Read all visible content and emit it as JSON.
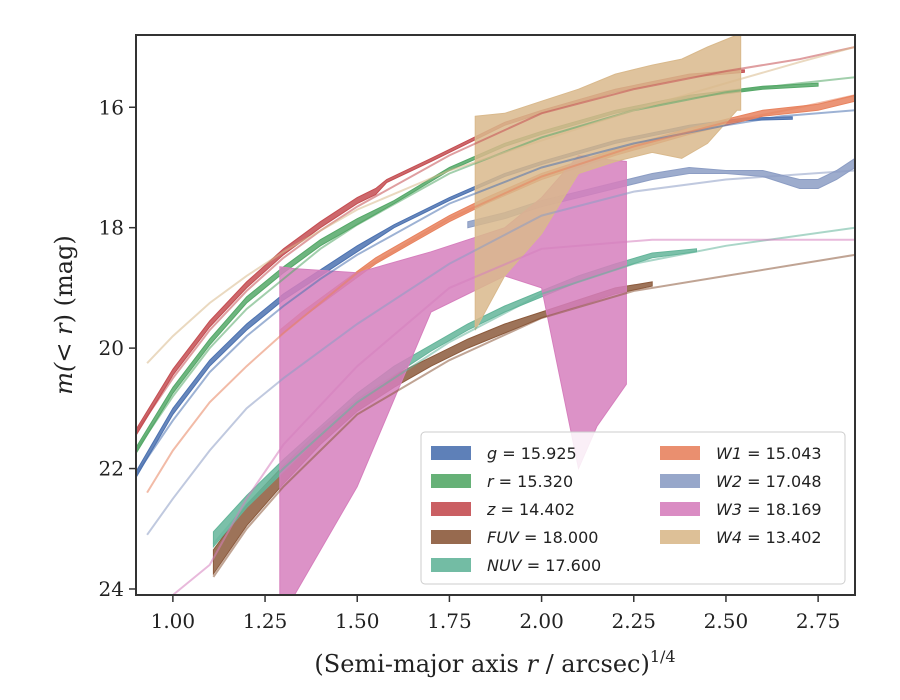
{
  "chart_data": {
    "type": "line",
    "xlabel_main": "(Semi-major axis ",
    "xlabel_var": "r",
    "xlabel_unit": " / arcsec)",
    "xlabel_exp": "1/4",
    "ylabel_pre": "m(",
    "ylabel_var": "< r",
    "ylabel_post": ") (mag)",
    "xlim": [
      0.9,
      2.85
    ],
    "ylim": [
      24.1,
      14.8
    ],
    "y_inverted": true,
    "xticks": [
      1.0,
      1.25,
      1.5,
      1.75,
      2.0,
      2.25,
      2.5,
      2.75
    ],
    "xtick_labels": [
      "1.00",
      "1.25",
      "1.50",
      "1.75",
      "2.00",
      "2.25",
      "2.50",
      "2.75"
    ],
    "yticks": [
      16,
      18,
      20,
      22,
      24
    ],
    "ytick_labels": [
      "16",
      "18",
      "20",
      "22",
      "24"
    ],
    "legend_position": "lower-right",
    "legend_columns": 2,
    "series": [
      {
        "name": "g = 15.925",
        "label_var": "g",
        "label_val": "= 15.925",
        "color": "#4c72b0",
        "band": [
          [
            0.9,
            22.15,
            22.05
          ],
          [
            1.0,
            21.1,
            21.0
          ],
          [
            1.1,
            20.3,
            20.2
          ],
          [
            1.2,
            19.7,
            19.6
          ],
          [
            1.3,
            19.2,
            19.1
          ],
          [
            1.4,
            18.8,
            18.7
          ],
          [
            1.5,
            18.4,
            18.3
          ],
          [
            1.6,
            18.0,
            17.95
          ],
          [
            1.75,
            17.55,
            17.5
          ],
          [
            1.9,
            17.15,
            17.1
          ],
          [
            2.0,
            16.95,
            16.9
          ],
          [
            2.2,
            16.6,
            16.55
          ],
          [
            2.4,
            16.35,
            16.3
          ],
          [
            2.55,
            16.22,
            16.18
          ],
          [
            2.68,
            16.2,
            16.16
          ]
        ],
        "model": [
          [
            0.9,
            22.1
          ],
          [
            1.0,
            21.2
          ],
          [
            1.1,
            20.4
          ],
          [
            1.2,
            19.8
          ],
          [
            1.3,
            19.3
          ],
          [
            1.4,
            18.85
          ],
          [
            1.5,
            18.45
          ],
          [
            1.75,
            17.6
          ],
          [
            2.0,
            17.0
          ],
          [
            2.25,
            16.6
          ],
          [
            2.5,
            16.3
          ],
          [
            2.65,
            16.15
          ],
          [
            2.85,
            16.05
          ]
        ]
      },
      {
        "name": "r = 15.320",
        "label_var": "r",
        "label_val": "= 15.320",
        "color": "#55a868",
        "band": [
          [
            0.9,
            21.75,
            21.65
          ],
          [
            1.0,
            20.75,
            20.65
          ],
          [
            1.1,
            19.95,
            19.85
          ],
          [
            1.2,
            19.25,
            19.15
          ],
          [
            1.3,
            18.75,
            18.65
          ],
          [
            1.4,
            18.3,
            18.2
          ],
          [
            1.5,
            17.95,
            17.85
          ],
          [
            1.6,
            17.6,
            17.55
          ],
          [
            1.75,
            17.05,
            17.0
          ],
          [
            1.9,
            16.65,
            16.6
          ],
          [
            2.0,
            16.45,
            16.4
          ],
          [
            2.2,
            16.1,
            16.05
          ],
          [
            2.4,
            15.85,
            15.8
          ],
          [
            2.6,
            15.7,
            15.65
          ],
          [
            2.75,
            15.65,
            15.6
          ]
        ],
        "model": [
          [
            0.9,
            21.7
          ],
          [
            1.0,
            20.8
          ],
          [
            1.1,
            20.0
          ],
          [
            1.2,
            19.35
          ],
          [
            1.3,
            18.85
          ],
          [
            1.4,
            18.35
          ],
          [
            1.5,
            17.95
          ],
          [
            1.75,
            17.1
          ],
          [
            2.0,
            16.5
          ],
          [
            2.25,
            16.05
          ],
          [
            2.5,
            15.75
          ],
          [
            2.7,
            15.6
          ],
          [
            2.85,
            15.5
          ]
        ]
      },
      {
        "name": "z = 14.402",
        "label_var": "z",
        "label_val": "= 14.402",
        "color": "#c44e52",
        "band": [
          [
            0.9,
            21.45,
            21.35
          ],
          [
            1.0,
            20.45,
            20.35
          ],
          [
            1.1,
            19.65,
            19.55
          ],
          [
            1.2,
            19.0,
            18.9
          ],
          [
            1.3,
            18.45,
            18.35
          ],
          [
            1.4,
            18.0,
            17.9
          ],
          [
            1.5,
            17.6,
            17.5
          ],
          [
            1.55,
            17.45,
            17.35
          ],
          [
            1.58,
            17.25,
            17.2
          ],
          [
            1.7,
            16.9,
            16.85
          ],
          [
            1.8,
            16.6,
            16.55
          ],
          [
            1.9,
            16.3,
            16.25
          ],
          [
            2.0,
            16.1,
            16.05
          ],
          [
            2.2,
            15.75,
            15.7
          ],
          [
            2.4,
            15.5,
            15.45
          ],
          [
            2.55,
            15.42,
            15.38
          ]
        ],
        "model": [
          [
            0.9,
            21.4
          ],
          [
            1.0,
            20.5
          ],
          [
            1.1,
            19.7
          ],
          [
            1.2,
            19.05
          ],
          [
            1.3,
            18.5
          ],
          [
            1.4,
            18.05
          ],
          [
            1.5,
            17.65
          ],
          [
            1.75,
            16.8
          ],
          [
            2.0,
            16.1
          ],
          [
            2.25,
            15.7
          ],
          [
            2.5,
            15.4
          ],
          [
            2.7,
            15.2
          ],
          [
            2.85,
            15.0
          ]
        ]
      },
      {
        "name": "FUV = 18.000",
        "label_var": "FUV",
        "label_val": "= 18.000",
        "color": "#8c5a3c",
        "band": [
          [
            1.11,
            23.75,
            23.35
          ],
          [
            1.2,
            22.95,
            22.6
          ],
          [
            1.3,
            22.25,
            21.95
          ],
          [
            1.4,
            21.6,
            21.35
          ],
          [
            1.5,
            21.05,
            20.85
          ],
          [
            1.6,
            20.65,
            20.45
          ],
          [
            1.7,
            20.3,
            20.15
          ],
          [
            1.8,
            20.0,
            19.85
          ],
          [
            1.9,
            19.75,
            19.6
          ],
          [
            2.0,
            19.5,
            19.4
          ],
          [
            2.1,
            19.3,
            19.2
          ],
          [
            2.2,
            19.1,
            19.0
          ],
          [
            2.3,
            18.97,
            18.9
          ]
        ],
        "model": [
          [
            1.11,
            23.8
          ],
          [
            1.2,
            23.0
          ],
          [
            1.3,
            22.3
          ],
          [
            1.5,
            21.1
          ],
          [
            1.75,
            20.2
          ],
          [
            2.0,
            19.5
          ],
          [
            2.25,
            19.05
          ],
          [
            2.5,
            18.8
          ],
          [
            2.85,
            18.45
          ]
        ]
      },
      {
        "name": "NUV = 17.600",
        "label_var": "NUV",
        "label_val": "= 17.600",
        "color": "#64b59a",
        "band": [
          [
            1.11,
            23.3,
            23.05
          ],
          [
            1.2,
            22.65,
            22.45
          ],
          [
            1.3,
            22.05,
            21.85
          ],
          [
            1.4,
            21.45,
            21.3
          ],
          [
            1.5,
            20.9,
            20.75
          ],
          [
            1.6,
            20.45,
            20.3
          ],
          [
            1.7,
            20.05,
            19.95
          ],
          [
            1.8,
            19.7,
            19.6
          ],
          [
            1.9,
            19.4,
            19.3
          ],
          [
            2.0,
            19.15,
            19.05
          ],
          [
            2.1,
            18.9,
            18.8
          ],
          [
            2.2,
            18.7,
            18.6
          ],
          [
            2.3,
            18.5,
            18.42
          ],
          [
            2.42,
            18.4,
            18.35
          ]
        ],
        "model": [
          [
            1.11,
            23.25
          ],
          [
            1.2,
            22.6
          ],
          [
            1.3,
            22.0
          ],
          [
            1.5,
            20.9
          ],
          [
            1.75,
            19.9
          ],
          [
            2.0,
            19.1
          ],
          [
            2.25,
            18.6
          ],
          [
            2.5,
            18.3
          ],
          [
            2.85,
            18.0
          ]
        ]
      },
      {
        "name": "W1 = 15.043",
        "label_var": "W1",
        "label_val": "= 15.043",
        "color": "#e8835f",
        "band": [
          [
            1.29,
            19.8,
            19.7
          ],
          [
            1.35,
            19.5,
            19.4
          ],
          [
            1.45,
            19.05,
            18.95
          ],
          [
            1.55,
            18.6,
            18.5
          ],
          [
            1.65,
            18.25,
            18.15
          ],
          [
            1.75,
            17.9,
            17.8
          ],
          [
            1.85,
            17.6,
            17.5
          ],
          [
            2.0,
            17.2,
            17.1
          ],
          [
            2.2,
            16.8,
            16.7
          ],
          [
            2.4,
            16.45,
            16.35
          ],
          [
            2.6,
            16.15,
            16.05
          ],
          [
            2.75,
            16.05,
            15.95
          ],
          [
            2.85,
            15.9,
            15.8
          ]
        ],
        "model": [
          [
            0.93,
            22.4
          ],
          [
            1.0,
            21.7
          ],
          [
            1.1,
            20.9
          ],
          [
            1.2,
            20.3
          ],
          [
            1.3,
            19.75
          ],
          [
            1.5,
            18.75
          ],
          [
            1.75,
            17.85
          ],
          [
            2.0,
            17.15
          ],
          [
            2.25,
            16.65
          ],
          [
            2.5,
            16.25
          ],
          [
            2.7,
            16.0
          ],
          [
            2.85,
            15.8
          ]
        ]
      },
      {
        "name": "W2 = 17.048",
        "label_var": "W2",
        "label_val": "= 17.048",
        "color": "#8c9dc4",
        "band": [
          [
            1.8,
            18.0,
            17.9
          ],
          [
            1.9,
            17.85,
            17.75
          ],
          [
            2.0,
            17.65,
            17.55
          ],
          [
            2.1,
            17.5,
            17.4
          ],
          [
            2.2,
            17.35,
            17.25
          ],
          [
            2.3,
            17.2,
            17.1
          ],
          [
            2.4,
            17.1,
            17.0
          ],
          [
            2.5,
            17.1,
            17.05
          ],
          [
            2.6,
            17.15,
            17.05
          ],
          [
            2.7,
            17.35,
            17.2
          ],
          [
            2.75,
            17.35,
            17.2
          ],
          [
            2.8,
            17.2,
            17.05
          ],
          [
            2.85,
            17.0,
            16.85
          ]
        ],
        "model": [
          [
            0.93,
            23.1
          ],
          [
            1.0,
            22.5
          ],
          [
            1.1,
            21.7
          ],
          [
            1.2,
            21.0
          ],
          [
            1.3,
            20.5
          ],
          [
            1.5,
            19.6
          ],
          [
            1.75,
            18.6
          ],
          [
            2.0,
            17.8
          ],
          [
            2.25,
            17.4
          ],
          [
            2.5,
            17.2
          ],
          [
            2.85,
            17.05
          ]
        ]
      },
      {
        "name": "W3 = 18.169",
        "label_var": "W3",
        "label_val": "= 18.169",
        "color": "#d67fbd",
        "band": [
          [
            1.29,
            24.1,
            18.65
          ],
          [
            1.33,
            24.1,
            18.68
          ],
          [
            1.5,
            22.3,
            18.75
          ],
          [
            1.7,
            19.4,
            18.4
          ],
          [
            1.9,
            18.8,
            18.0
          ],
          [
            2.0,
            19.0,
            17.5
          ],
          [
            2.1,
            22.0,
            16.8
          ],
          [
            2.15,
            21.3,
            16.85
          ],
          [
            2.23,
            20.6,
            16.9
          ]
        ],
        "model": [
          [
            1.0,
            24.1
          ],
          [
            1.1,
            23.6
          ],
          [
            1.2,
            22.5
          ],
          [
            1.3,
            21.6
          ],
          [
            1.5,
            20.3
          ],
          [
            1.75,
            19.0
          ],
          [
            2.0,
            18.35
          ],
          [
            2.3,
            18.2
          ],
          [
            2.85,
            18.2
          ]
        ]
      },
      {
        "name": "W4 = 13.402",
        "label_var": "W4",
        "label_val": "= 13.402",
        "color": "#d9b98c",
        "band": [
          [
            1.82,
            19.7,
            16.15
          ],
          [
            1.9,
            18.8,
            16.1
          ],
          [
            2.0,
            18.1,
            15.9
          ],
          [
            2.1,
            17.1,
            15.7
          ],
          [
            2.2,
            16.9,
            15.45
          ],
          [
            2.3,
            16.75,
            15.3
          ],
          [
            2.38,
            16.85,
            15.2
          ],
          [
            2.45,
            16.6,
            15.0
          ],
          [
            2.53,
            16.05,
            14.8
          ],
          [
            2.54,
            16.05,
            14.8
          ]
        ],
        "model": [
          [
            0.93,
            20.25
          ],
          [
            1.0,
            19.8
          ],
          [
            1.1,
            19.25
          ],
          [
            1.2,
            18.8
          ],
          [
            1.3,
            18.4
          ],
          [
            1.5,
            17.7
          ],
          [
            1.75,
            17.05
          ],
          [
            2.0,
            16.55
          ],
          [
            2.25,
            16.05
          ],
          [
            2.5,
            15.6
          ],
          [
            2.7,
            15.25
          ],
          [
            2.85,
            15.0
          ]
        ]
      }
    ]
  }
}
